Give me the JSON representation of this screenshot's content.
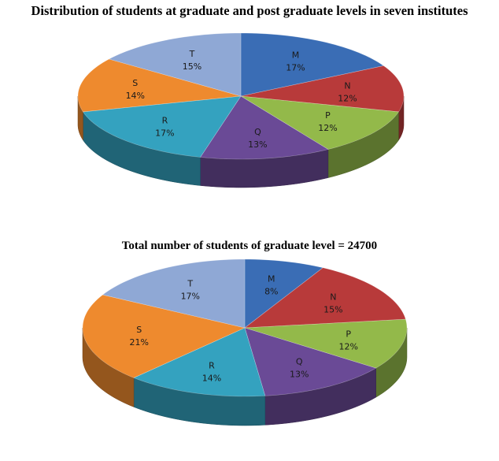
{
  "title": "Distribution of students at graduate and post graduate levels in seven institutes",
  "subtitle": "Total number of students of graduate level = 24700",
  "chart_data": [
    {
      "type": "pie",
      "categories": [
        "M",
        "N",
        "P",
        "Q",
        "R",
        "S",
        "T"
      ],
      "values": [
        17,
        12,
        12,
        13,
        17,
        14,
        15
      ],
      "labels": [
        "17%",
        "12%",
        "12%",
        "13%",
        "17%",
        "14%",
        "15%"
      ]
    },
    {
      "type": "pie",
      "categories": [
        "M",
        "N",
        "P",
        "Q",
        "R",
        "S",
        "T"
      ],
      "values": [
        8,
        15,
        12,
        13,
        14,
        21,
        17
      ],
      "labels": [
        "8%",
        "15%",
        "12%",
        "13%",
        "14%",
        "21%",
        "17%"
      ]
    }
  ],
  "colors": {
    "M": "#3a6db5",
    "N": "#b83a3a",
    "P": "#93b94a",
    "Q": "#6a4a96",
    "R": "#34a2bf",
    "S": "#ee8a2e",
    "T": "#8fa8d5"
  }
}
